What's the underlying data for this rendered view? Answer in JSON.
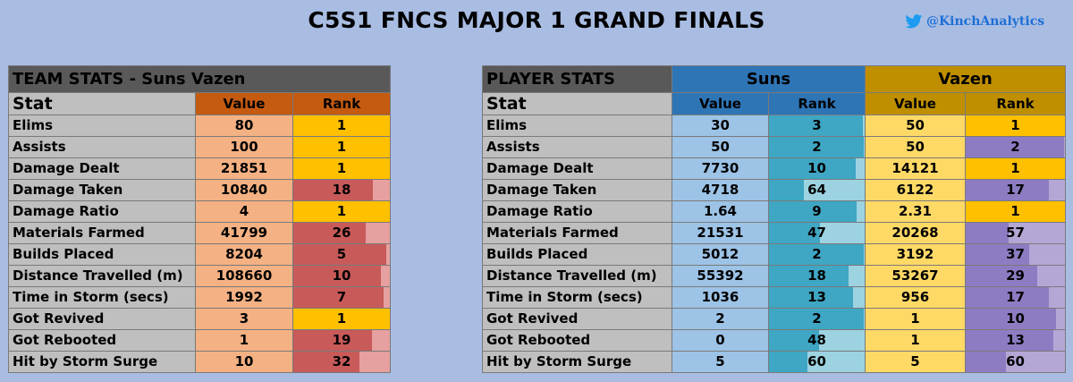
{
  "title": "C5S1 FNCS MAJOR 1 GRAND FINALS",
  "handle": "@KinchAnalytics",
  "icon": "twitter-bird-icon",
  "team_table": {
    "header": "TEAM STATS - Suns Vazen",
    "col_stat": "Stat",
    "col_value": "Value",
    "col_rank": "Rank",
    "rows": [
      {
        "stat": "Elims",
        "value": "80",
        "rank": "1",
        "rank_num": 1
      },
      {
        "stat": "Assists",
        "value": "100",
        "rank": "1",
        "rank_num": 1
      },
      {
        "stat": "Damage Dealt",
        "value": "21851",
        "rank": "1",
        "rank_num": 1
      },
      {
        "stat": "Damage Taken",
        "value": "10840",
        "rank": "18",
        "rank_num": 18
      },
      {
        "stat": "Damage Ratio",
        "value": "4",
        "rank": "1",
        "rank_num": 1
      },
      {
        "stat": "Materials Farmed",
        "value": "41799",
        "rank": "26",
        "rank_num": 26
      },
      {
        "stat": "Builds Placed",
        "value": "8204",
        "rank": "5",
        "rank_num": 5
      },
      {
        "stat": "Distance Travelled (m)",
        "value": "108660",
        "rank": "10",
        "rank_num": 10
      },
      {
        "stat": "Time in Storm (secs)",
        "value": "1992",
        "rank": "7",
        "rank_num": 7
      },
      {
        "stat": "Got Revived",
        "value": "3",
        "rank": "1",
        "rank_num": 1
      },
      {
        "stat": "Got Rebooted",
        "value": "1",
        "rank": "19",
        "rank_num": 19
      },
      {
        "stat": "Hit by Storm Surge",
        "value": "10",
        "rank": "32",
        "rank_num": 32
      }
    ]
  },
  "player_table": {
    "header": "PLAYER STATS",
    "player1": "Suns",
    "player2": "Vazen",
    "col_stat": "Stat",
    "col_value": "Value",
    "col_rank": "Rank",
    "rows": [
      {
        "stat": "Elims",
        "p1_value": "30",
        "p1_rank": "3",
        "p1_rank_num": 3,
        "p2_value": "50",
        "p2_rank": "1",
        "p2_rank_num": 1
      },
      {
        "stat": "Assists",
        "p1_value": "50",
        "p1_rank": "2",
        "p1_rank_num": 2,
        "p2_value": "50",
        "p2_rank": "2",
        "p2_rank_num": 2
      },
      {
        "stat": "Damage Dealt",
        "p1_value": "7730",
        "p1_rank": "10",
        "p1_rank_num": 10,
        "p2_value": "14121",
        "p2_rank": "1",
        "p2_rank_num": 1
      },
      {
        "stat": "Damage Taken",
        "p1_value": "4718",
        "p1_rank": "64",
        "p1_rank_num": 64,
        "p2_value": "6122",
        "p2_rank": "17",
        "p2_rank_num": 17
      },
      {
        "stat": "Damage Ratio",
        "p1_value": "1.64",
        "p1_rank": "9",
        "p1_rank_num": 9,
        "p2_value": "2.31",
        "p2_rank": "1",
        "p2_rank_num": 1
      },
      {
        "stat": "Materials Farmed",
        "p1_value": "21531",
        "p1_rank": "47",
        "p1_rank_num": 47,
        "p2_value": "20268",
        "p2_rank": "57",
        "p2_rank_num": 57
      },
      {
        "stat": "Builds Placed",
        "p1_value": "5012",
        "p1_rank": "2",
        "p1_rank_num": 2,
        "p2_value": "3192",
        "p2_rank": "37",
        "p2_rank_num": 37
      },
      {
        "stat": "Distance Travelled (m)",
        "p1_value": "55392",
        "p1_rank": "18",
        "p1_rank_num": 18,
        "p2_value": "53267",
        "p2_rank": "29",
        "p2_rank_num": 29
      },
      {
        "stat": "Time in Storm (secs)",
        "p1_value": "1036",
        "p1_rank": "13",
        "p1_rank_num": 13,
        "p2_value": "956",
        "p2_rank": "17",
        "p2_rank_num": 17
      },
      {
        "stat": "Got Revived",
        "p1_value": "2",
        "p1_rank": "2",
        "p1_rank_num": 2,
        "p2_value": "1",
        "p2_rank": "10",
        "p2_rank_num": 10
      },
      {
        "stat": "Got Rebooted",
        "p1_value": "0",
        "p1_rank": "48",
        "p1_rank_num": 48,
        "p2_value": "1",
        "p2_rank": "13",
        "p2_rank_num": 13
      },
      {
        "stat": "Hit by Storm Surge",
        "p1_value": "5",
        "p1_rank": "60",
        "p1_rank_num": 60,
        "p2_value": "5",
        "p2_rank": "60",
        "p2_rank_num": 60
      }
    ]
  }
}
